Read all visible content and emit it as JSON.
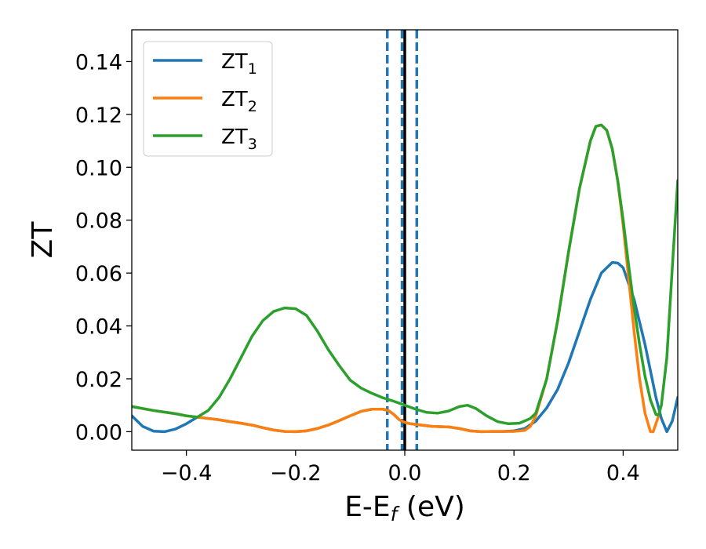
{
  "chart_data": {
    "type": "line",
    "title": "",
    "xlabel_main": "E-E",
    "xlabel_sub": "f",
    "xlabel_tail": " (eV)",
    "ylabel": "ZT",
    "xlim": [
      -0.5,
      0.5
    ],
    "ylim": [
      -0.007,
      0.152
    ],
    "xticks": [
      -0.4,
      -0.2,
      0.0,
      0.2,
      0.4
    ],
    "xtick_labels": [
      "−0.4",
      "−0.2",
      "0.0",
      "0.2",
      "0.4"
    ],
    "yticks": [
      0.0,
      0.02,
      0.04,
      0.06,
      0.08,
      0.1,
      0.12,
      0.14
    ],
    "ytick_labels": [
      "0.00",
      "0.02",
      "0.04",
      "0.06",
      "0.08",
      "0.10",
      "0.12",
      "0.14"
    ],
    "grid": false,
    "legend_position": "top-left",
    "vlines": [
      {
        "x": -0.032,
        "style": "dashed",
        "color": "#1f77b4"
      },
      {
        "x": -0.005,
        "style": "dashed",
        "color": "#1f77b4"
      },
      {
        "x": 0.0,
        "style": "solid",
        "color": "#000000"
      },
      {
        "x": 0.022,
        "style": "dashed",
        "color": "#1f77b4"
      }
    ],
    "series": [
      {
        "name": "ZT",
        "sub": "1",
        "color": "#1f77b4",
        "points": [
          [
            -0.5,
            0.006
          ],
          [
            -0.48,
            0.002
          ],
          [
            -0.46,
            0.0002
          ],
          [
            -0.44,
            0.0
          ],
          [
            -0.42,
            0.001
          ],
          [
            -0.4,
            0.003
          ],
          [
            -0.38,
            0.0055
          ],
          [
            -0.36,
            0.005
          ],
          [
            -0.34,
            0.0045
          ],
          [
            -0.32,
            0.0038
          ],
          [
            -0.3,
            0.0032
          ],
          [
            -0.28,
            0.0025
          ],
          [
            -0.26,
            0.0015
          ],
          [
            -0.24,
            0.0006
          ],
          [
            -0.22,
            0.0001
          ],
          [
            -0.2,
            0.0
          ],
          [
            -0.18,
            0.0003
          ],
          [
            -0.16,
            0.0012
          ],
          [
            -0.14,
            0.0025
          ],
          [
            -0.12,
            0.0042
          ],
          [
            -0.1,
            0.006
          ],
          [
            -0.08,
            0.0077
          ],
          [
            -0.06,
            0.0085
          ],
          [
            -0.04,
            0.0085
          ],
          [
            -0.03,
            0.008
          ],
          [
            -0.02,
            0.0065
          ],
          [
            -0.01,
            0.0045
          ],
          [
            0.0,
            0.0035
          ],
          [
            0.01,
            0.003
          ],
          [
            0.03,
            0.0025
          ],
          [
            0.05,
            0.002
          ],
          [
            0.08,
            0.0018
          ],
          [
            0.1,
            0.0012
          ],
          [
            0.12,
            0.0003
          ],
          [
            0.14,
            0.0
          ],
          [
            0.16,
            0.0001
          ],
          [
            0.18,
            0.0001
          ],
          [
            0.2,
            0.0003
          ],
          [
            0.22,
            0.0012
          ],
          [
            0.24,
            0.004
          ],
          [
            0.26,
            0.009
          ],
          [
            0.28,
            0.016
          ],
          [
            0.3,
            0.026
          ],
          [
            0.32,
            0.038
          ],
          [
            0.34,
            0.05
          ],
          [
            0.36,
            0.06
          ],
          [
            0.38,
            0.064
          ],
          [
            0.39,
            0.0638
          ],
          [
            0.4,
            0.062
          ],
          [
            0.42,
            0.05
          ],
          [
            0.44,
            0.033
          ],
          [
            0.45,
            0.023
          ],
          [
            0.46,
            0.013
          ],
          [
            0.47,
            0.005
          ],
          [
            0.48,
            0.0
          ],
          [
            0.49,
            0.004
          ],
          [
            0.5,
            0.013
          ]
        ]
      },
      {
        "name": "ZT",
        "sub": "2",
        "color": "#ff7f0e",
        "points": [
          [
            -0.5,
            0.0095
          ],
          [
            -0.46,
            0.008
          ],
          [
            -0.42,
            0.0068
          ],
          [
            -0.4,
            0.006
          ],
          [
            -0.38,
            0.0055
          ],
          [
            -0.36,
            0.005
          ],
          [
            -0.34,
            0.0045
          ],
          [
            -0.32,
            0.0038
          ],
          [
            -0.3,
            0.0032
          ],
          [
            -0.28,
            0.0025
          ],
          [
            -0.26,
            0.0015
          ],
          [
            -0.24,
            0.0006
          ],
          [
            -0.22,
            0.0001
          ],
          [
            -0.2,
            0.0
          ],
          [
            -0.18,
            0.0003
          ],
          [
            -0.16,
            0.0012
          ],
          [
            -0.14,
            0.0025
          ],
          [
            -0.12,
            0.0042
          ],
          [
            -0.1,
            0.006
          ],
          [
            -0.08,
            0.0077
          ],
          [
            -0.06,
            0.0085
          ],
          [
            -0.04,
            0.0085
          ],
          [
            -0.03,
            0.008
          ],
          [
            -0.02,
            0.0065
          ],
          [
            -0.01,
            0.0045
          ],
          [
            0.0,
            0.0035
          ],
          [
            0.01,
            0.003
          ],
          [
            0.03,
            0.0025
          ],
          [
            0.05,
            0.002
          ],
          [
            0.08,
            0.0018
          ],
          [
            0.1,
            0.0012
          ],
          [
            0.12,
            0.0003
          ],
          [
            0.14,
            0.0
          ],
          [
            0.16,
            0.0001
          ],
          [
            0.18,
            0.0001
          ],
          [
            0.2,
            0.0001
          ],
          [
            0.22,
            0.0005
          ],
          [
            0.23,
            0.002
          ],
          [
            0.24,
            0.006
          ],
          [
            0.26,
            0.02
          ],
          [
            0.28,
            0.042
          ],
          [
            0.3,
            0.068
          ],
          [
            0.32,
            0.092
          ],
          [
            0.34,
            0.11
          ],
          [
            0.35,
            0.1155
          ],
          [
            0.36,
            0.116
          ],
          [
            0.37,
            0.114
          ],
          [
            0.38,
            0.107
          ],
          [
            0.39,
            0.095
          ],
          [
            0.4,
            0.078
          ],
          [
            0.41,
            0.058
          ],
          [
            0.42,
            0.038
          ],
          [
            0.43,
            0.02
          ],
          [
            0.44,
            0.007
          ],
          [
            0.45,
            0.0
          ],
          [
            0.455,
            0.0
          ],
          [
            0.46,
            0.003
          ],
          [
            0.465,
            0.006
          ]
        ]
      },
      {
        "name": "ZT",
        "sub": "3",
        "color": "#2ca02c",
        "points": [
          [
            -0.5,
            0.0095
          ],
          [
            -0.46,
            0.008
          ],
          [
            -0.42,
            0.0068
          ],
          [
            -0.4,
            0.006
          ],
          [
            -0.38,
            0.0055
          ],
          [
            -0.36,
            0.008
          ],
          [
            -0.34,
            0.013
          ],
          [
            -0.32,
            0.02
          ],
          [
            -0.3,
            0.028
          ],
          [
            -0.28,
            0.036
          ],
          [
            -0.26,
            0.042
          ],
          [
            -0.24,
            0.0455
          ],
          [
            -0.22,
            0.0468
          ],
          [
            -0.2,
            0.0465
          ],
          [
            -0.18,
            0.044
          ],
          [
            -0.16,
            0.038
          ],
          [
            -0.14,
            0.031
          ],
          [
            -0.12,
            0.025
          ],
          [
            -0.1,
            0.0195
          ],
          [
            -0.08,
            0.0165
          ],
          [
            -0.06,
            0.0145
          ],
          [
            -0.04,
            0.0128
          ],
          [
            -0.02,
            0.0115
          ],
          [
            0.0,
            0.01
          ],
          [
            0.02,
            0.0085
          ],
          [
            0.04,
            0.0073
          ],
          [
            0.06,
            0.007
          ],
          [
            0.08,
            0.0078
          ],
          [
            0.1,
            0.0095
          ],
          [
            0.115,
            0.01
          ],
          [
            0.13,
            0.0088
          ],
          [
            0.15,
            0.006
          ],
          [
            0.17,
            0.0038
          ],
          [
            0.19,
            0.003
          ],
          [
            0.21,
            0.0032
          ],
          [
            0.23,
            0.005
          ],
          [
            0.24,
            0.007
          ],
          [
            0.26,
            0.02
          ],
          [
            0.28,
            0.042
          ],
          [
            0.3,
            0.068
          ],
          [
            0.32,
            0.092
          ],
          [
            0.34,
            0.11
          ],
          [
            0.35,
            0.1155
          ],
          [
            0.36,
            0.116
          ],
          [
            0.37,
            0.114
          ],
          [
            0.38,
            0.107
          ],
          [
            0.39,
            0.095
          ],
          [
            0.4,
            0.08
          ],
          [
            0.41,
            0.063
          ],
          [
            0.42,
            0.047
          ],
          [
            0.43,
            0.033
          ],
          [
            0.44,
            0.021
          ],
          [
            0.45,
            0.012
          ],
          [
            0.46,
            0.0065
          ],
          [
            0.465,
            0.0063
          ],
          [
            0.47,
            0.01
          ],
          [
            0.48,
            0.028
          ],
          [
            0.49,
            0.062
          ],
          [
            0.5,
            0.095
          ]
        ]
      }
    ]
  }
}
